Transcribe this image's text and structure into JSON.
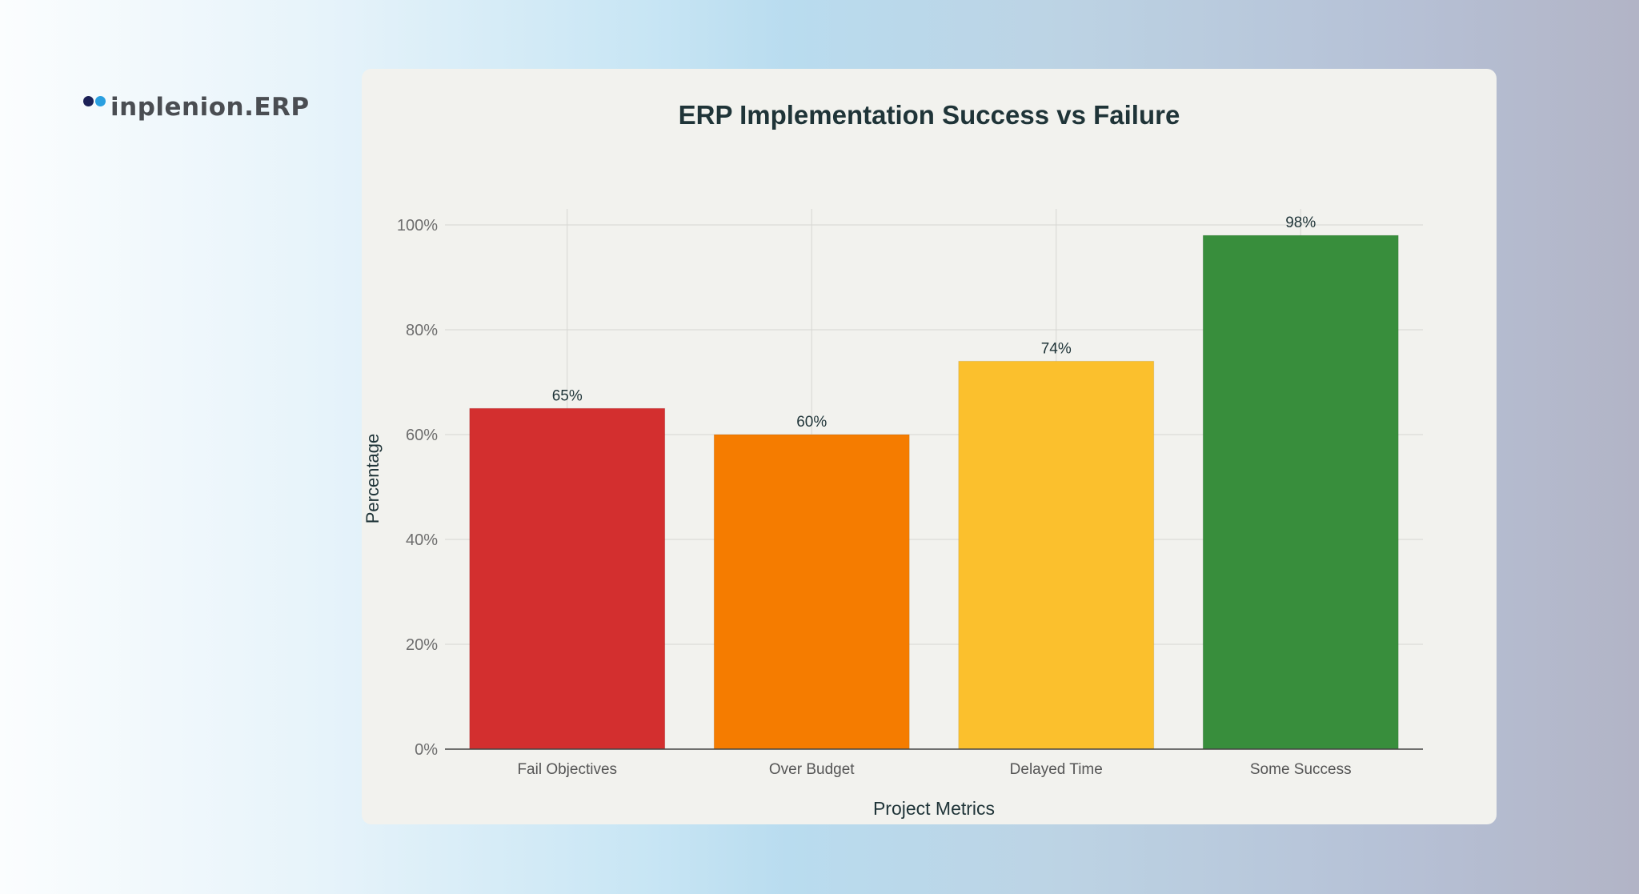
{
  "logo": {
    "text": "inplenion.ERP",
    "dot_colors": [
      "#1c2057",
      "#2a9fe0"
    ]
  },
  "chart_data": {
    "type": "bar",
    "title": "ERP Implementation Success vs Failure",
    "xlabel": "Project Metrics",
    "ylabel": "Percentage",
    "categories": [
      "Fail Objectives",
      "Over Budget",
      "Delayed Time",
      "Some Success"
    ],
    "values": [
      65,
      60,
      74,
      98
    ],
    "data_labels": [
      "65%",
      "60%",
      "74%",
      "98%"
    ],
    "colors": [
      "#d32f2f",
      "#f57c00",
      "#fbc02d",
      "#388e3c"
    ],
    "ylim": [
      0,
      100
    ],
    "yticks": [
      0,
      20,
      40,
      60,
      80,
      100
    ],
    "ytick_labels": [
      "0%",
      "20%",
      "40%",
      "60%",
      "80%",
      "100%"
    ],
    "grid": true,
    "legend": "none"
  }
}
